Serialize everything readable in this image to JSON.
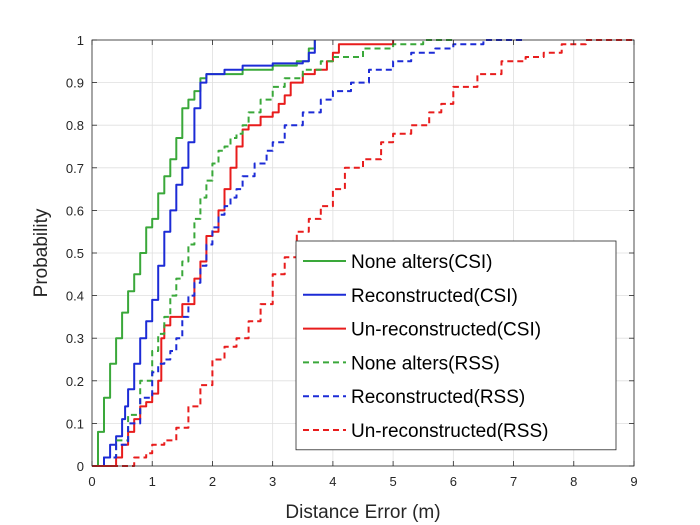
{
  "chart_data": {
    "type": "line",
    "xlabel": "Distance Error (m)",
    "ylabel": "Probability",
    "xlim": [
      0,
      9
    ],
    "ylim": [
      0,
      1
    ],
    "xticks": [
      "0",
      "1",
      "2",
      "3",
      "4",
      "5",
      "6",
      "7",
      "8",
      "9"
    ],
    "yticks": [
      "0",
      "0.1",
      "0.2",
      "0.3",
      "0.4",
      "0.5",
      "0.6",
      "0.7",
      "0.8",
      "0.9",
      "1"
    ],
    "grid": true,
    "legend_position": "lower-right",
    "series": [
      {
        "name": "None alters(CSI)",
        "color": "#3aa83a",
        "dash": "solid",
        "points": [
          [
            0,
            0
          ],
          [
            0.1,
            0.08
          ],
          [
            0.2,
            0.16
          ],
          [
            0.3,
            0.24
          ],
          [
            0.4,
            0.3
          ],
          [
            0.5,
            0.36
          ],
          [
            0.6,
            0.41
          ],
          [
            0.7,
            0.45
          ],
          [
            0.8,
            0.5
          ],
          [
            0.9,
            0.56
          ],
          [
            1.0,
            0.58
          ],
          [
            1.1,
            0.64
          ],
          [
            1.2,
            0.68
          ],
          [
            1.3,
            0.72
          ],
          [
            1.4,
            0.77
          ],
          [
            1.5,
            0.84
          ],
          [
            1.6,
            0.86
          ],
          [
            1.7,
            0.88
          ],
          [
            1.8,
            0.91
          ],
          [
            1.9,
            0.92
          ],
          [
            2.5,
            0.93
          ],
          [
            3.0,
            0.94
          ],
          [
            3.4,
            0.95
          ],
          [
            3.6,
            0.98
          ],
          [
            3.7,
            1.0
          ]
        ]
      },
      {
        "name": "Reconstructed(CSI)",
        "color": "#1c2bd6",
        "dash": "solid",
        "points": [
          [
            0,
            0
          ],
          [
            0.2,
            0.02
          ],
          [
            0.3,
            0.05
          ],
          [
            0.4,
            0.07
          ],
          [
            0.5,
            0.11
          ],
          [
            0.55,
            0.14
          ],
          [
            0.6,
            0.18
          ],
          [
            0.7,
            0.24
          ],
          [
            0.8,
            0.3
          ],
          [
            0.9,
            0.34
          ],
          [
            1.0,
            0.39
          ],
          [
            1.1,
            0.47
          ],
          [
            1.2,
            0.55
          ],
          [
            1.3,
            0.6
          ],
          [
            1.4,
            0.66
          ],
          [
            1.5,
            0.7
          ],
          [
            1.6,
            0.76
          ],
          [
            1.7,
            0.84
          ],
          [
            1.8,
            0.9
          ],
          [
            1.9,
            0.92
          ],
          [
            2.2,
            0.93
          ],
          [
            2.5,
            0.94
          ],
          [
            3.0,
            0.945
          ],
          [
            3.5,
            0.95
          ],
          [
            3.6,
            0.97
          ],
          [
            3.7,
            1.0
          ]
        ]
      },
      {
        "name": "Un-reconstructed(CSI)",
        "color": "#e81c1c",
        "dash": "solid",
        "points": [
          [
            0,
            0
          ],
          [
            0.3,
            0.0
          ],
          [
            0.4,
            0.02
          ],
          [
            0.5,
            0.05
          ],
          [
            0.6,
            0.08
          ],
          [
            0.7,
            0.11
          ],
          [
            0.8,
            0.14
          ],
          [
            0.9,
            0.15
          ],
          [
            1.0,
            0.17
          ],
          [
            1.1,
            0.2
          ],
          [
            1.15,
            0.3
          ],
          [
            1.2,
            0.33
          ],
          [
            1.3,
            0.35
          ],
          [
            1.5,
            0.38
          ],
          [
            1.7,
            0.44
          ],
          [
            1.8,
            0.48
          ],
          [
            1.9,
            0.54
          ],
          [
            2.0,
            0.55
          ],
          [
            2.1,
            0.6
          ],
          [
            2.2,
            0.65
          ],
          [
            2.3,
            0.7
          ],
          [
            2.4,
            0.75
          ],
          [
            2.5,
            0.79
          ],
          [
            2.6,
            0.8
          ],
          [
            2.8,
            0.82
          ],
          [
            3.0,
            0.83
          ],
          [
            3.1,
            0.85
          ],
          [
            3.2,
            0.87
          ],
          [
            3.3,
            0.9
          ],
          [
            3.5,
            0.92
          ],
          [
            3.7,
            0.93
          ],
          [
            3.9,
            0.95
          ],
          [
            4.0,
            0.97
          ],
          [
            4.1,
            0.99
          ],
          [
            4.5,
            0.99
          ],
          [
            5.0,
            1.0
          ]
        ]
      },
      {
        "name": "None alters(RSS)",
        "color": "#3aa83a",
        "dash": "dashed",
        "points": [
          [
            0,
            0
          ],
          [
            0.2,
            0.02
          ],
          [
            0.4,
            0.06
          ],
          [
            0.6,
            0.12
          ],
          [
            0.8,
            0.2
          ],
          [
            1.0,
            0.27
          ],
          [
            1.1,
            0.31
          ],
          [
            1.2,
            0.35
          ],
          [
            1.3,
            0.4
          ],
          [
            1.4,
            0.44
          ],
          [
            1.5,
            0.48
          ],
          [
            1.6,
            0.52
          ],
          [
            1.7,
            0.58
          ],
          [
            1.8,
            0.63
          ],
          [
            1.9,
            0.67
          ],
          [
            2.0,
            0.71
          ],
          [
            2.1,
            0.74
          ],
          [
            2.2,
            0.75
          ],
          [
            2.3,
            0.77
          ],
          [
            2.4,
            0.78
          ],
          [
            2.5,
            0.8
          ],
          [
            2.6,
            0.83
          ],
          [
            2.8,
            0.86
          ],
          [
            3.0,
            0.89
          ],
          [
            3.2,
            0.91
          ],
          [
            3.5,
            0.93
          ],
          [
            3.8,
            0.95
          ],
          [
            4.0,
            0.96
          ],
          [
            4.5,
            0.98
          ],
          [
            5.0,
            0.99
          ],
          [
            5.5,
            1.0
          ],
          [
            6.0,
            1.0
          ]
        ]
      },
      {
        "name": "Reconstructed(RSS)",
        "color": "#1c2bd6",
        "dash": "dashed",
        "points": [
          [
            0,
            0
          ],
          [
            0.2,
            0.02
          ],
          [
            0.4,
            0.05
          ],
          [
            0.6,
            0.1
          ],
          [
            0.8,
            0.16
          ],
          [
            1.0,
            0.22
          ],
          [
            1.1,
            0.24
          ],
          [
            1.2,
            0.25
          ],
          [
            1.3,
            0.27
          ],
          [
            1.4,
            0.3
          ],
          [
            1.5,
            0.35
          ],
          [
            1.6,
            0.4
          ],
          [
            1.7,
            0.43
          ],
          [
            1.8,
            0.47
          ],
          [
            1.9,
            0.52
          ],
          [
            2.0,
            0.56
          ],
          [
            2.1,
            0.59
          ],
          [
            2.2,
            0.61
          ],
          [
            2.3,
            0.63
          ],
          [
            2.4,
            0.65
          ],
          [
            2.5,
            0.68
          ],
          [
            2.7,
            0.71
          ],
          [
            2.9,
            0.74
          ],
          [
            3.0,
            0.76
          ],
          [
            3.2,
            0.8
          ],
          [
            3.5,
            0.83
          ],
          [
            3.8,
            0.86
          ],
          [
            4.0,
            0.88
          ],
          [
            4.3,
            0.9
          ],
          [
            4.6,
            0.93
          ],
          [
            5.0,
            0.95
          ],
          [
            5.3,
            0.97
          ],
          [
            5.7,
            0.98
          ],
          [
            6.0,
            0.99
          ],
          [
            6.5,
            1.0
          ],
          [
            7.2,
            1.0
          ]
        ]
      },
      {
        "name": "Un-reconstructed(RSS)",
        "color": "#e81c1c",
        "dash": "dashed",
        "points": [
          [
            0,
            0
          ],
          [
            0.5,
            0.0
          ],
          [
            0.7,
            0.02
          ],
          [
            0.9,
            0.03
          ],
          [
            1.0,
            0.05
          ],
          [
            1.2,
            0.06
          ],
          [
            1.4,
            0.09
          ],
          [
            1.6,
            0.14
          ],
          [
            1.8,
            0.19
          ],
          [
            2.0,
            0.25
          ],
          [
            2.2,
            0.28
          ],
          [
            2.4,
            0.3
          ],
          [
            2.6,
            0.34
          ],
          [
            2.8,
            0.38
          ],
          [
            3.0,
            0.45
          ],
          [
            3.2,
            0.49
          ],
          [
            3.4,
            0.55
          ],
          [
            3.6,
            0.58
          ],
          [
            3.8,
            0.61
          ],
          [
            4.0,
            0.65
          ],
          [
            4.2,
            0.7
          ],
          [
            4.5,
            0.72
          ],
          [
            4.8,
            0.76
          ],
          [
            5.0,
            0.78
          ],
          [
            5.3,
            0.8
          ],
          [
            5.6,
            0.83
          ],
          [
            5.8,
            0.85
          ],
          [
            6.0,
            0.89
          ],
          [
            6.4,
            0.92
          ],
          [
            6.8,
            0.95
          ],
          [
            7.2,
            0.96
          ],
          [
            7.5,
            0.97
          ],
          [
            7.8,
            0.99
          ],
          [
            8.2,
            1.0
          ],
          [
            9.0,
            1.0
          ]
        ]
      }
    ]
  }
}
